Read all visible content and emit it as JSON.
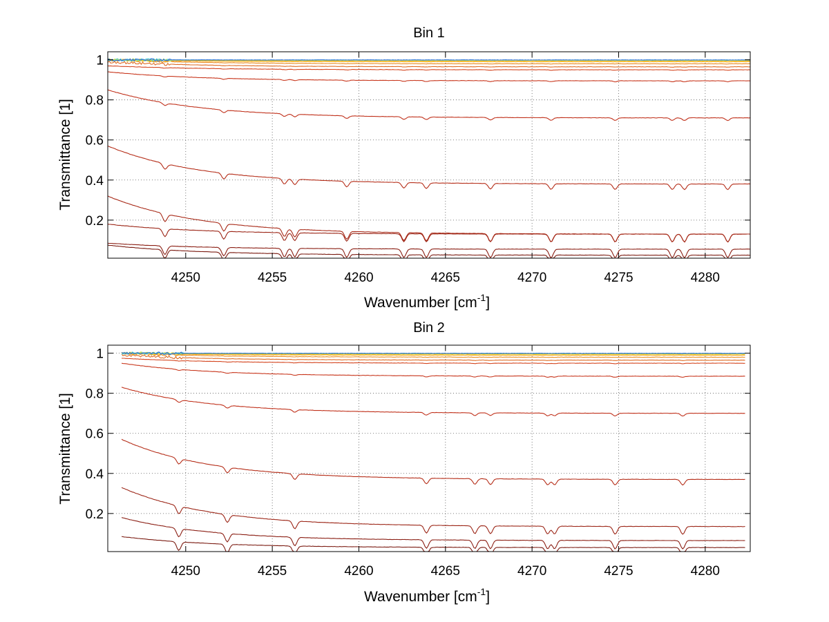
{
  "chart_data": [
    {
      "type": "line",
      "title": "Bin 1",
      "xlabel_main": "Wavenumber [cm",
      "xlabel_sup": "-1",
      "xlabel_end": "]",
      "ylabel": "Transmittance [1]",
      "xlim": [
        4245.5,
        4282.6
      ],
      "ylim": [
        0.01,
        1.04
      ],
      "grid": true,
      "x_ticks": [
        4250,
        4255,
        4260,
        4265,
        4270,
        4275,
        4280
      ],
      "y_ticks": [
        0.2,
        0.4,
        0.6,
        0.8,
        1
      ],
      "x_ticklabels": [
        "4250",
        "4255",
        "4260",
        "4265",
        "4270",
        "4275",
        "4280"
      ],
      "y_ticklabels": [
        "0.2",
        "0.4",
        "0.6",
        "0.8",
        "1"
      ],
      "x_start": 4245.5,
      "x_end": 4282.6,
      "absorption_lines": [
        4248.8,
        4252.2,
        4255.7,
        4256.3,
        4259.3,
        4262.6,
        4263.9,
        4267.6,
        4271.1,
        4274.8,
        4278.1,
        4278.8,
        4281.3
      ],
      "series": [
        {
          "color": "#7a1a10",
          "start": 0.075,
          "end": 0.025
        },
        {
          "color": "#8a1d12",
          "start": 0.085,
          "end": 0.055
        },
        {
          "color": "#9b2415",
          "start": 0.18,
          "end": 0.13
        },
        {
          "color": "#a82a18",
          "start": 0.32,
          "end": 0.13
        },
        {
          "color": "#b52d18",
          "start": 0.57,
          "end": 0.38
        },
        {
          "color": "#c0301a",
          "start": 0.85,
          "end": 0.71
        },
        {
          "color": "#c8361c",
          "start": 0.94,
          "end": 0.895
        },
        {
          "color": "#d4441e",
          "start": 0.97,
          "end": 0.95
        },
        {
          "color": "#de6a22",
          "start": 0.99,
          "end": 0.965
        },
        {
          "color": "#e98a20",
          "start": 1.0,
          "end": 0.98
        },
        {
          "color": "#f2a818",
          "start": 1.0,
          "end": 0.99
        },
        {
          "color": "#f7d418",
          "start": 1.0,
          "end": 0.995
        },
        {
          "color": "#b8e040",
          "start": 1.0,
          "end": 0.998
        },
        {
          "color": "#4fc8d8",
          "start": 1.0,
          "end": 0.999
        },
        {
          "color": "#2a6ad8",
          "start": 1.0,
          "end": 0.999
        }
      ]
    },
    {
      "type": "line",
      "title": "Bin 2",
      "xlabel_main": "Wavenumber [cm",
      "xlabel_sup": "-1",
      "xlabel_end": "]",
      "ylabel": "Transmittance [1]",
      "xlim": [
        4245.5,
        4282.6
      ],
      "ylim": [
        0.01,
        1.04
      ],
      "grid": true,
      "x_ticks": [
        4250,
        4255,
        4260,
        4265,
        4270,
        4275,
        4280
      ],
      "y_ticks": [
        0.2,
        0.4,
        0.6,
        0.8,
        1
      ],
      "x_ticklabels": [
        "4250",
        "4255",
        "4260",
        "4265",
        "4270",
        "4275",
        "4280"
      ],
      "y_ticklabels": [
        "0.2",
        "0.4",
        "0.6",
        "0.8",
        "1"
      ],
      "x_start": 4246.3,
      "x_end": 4282.3,
      "absorption_lines": [
        4249.6,
        4252.4,
        4256.3,
        4263.9,
        4266.7,
        4267.6,
        4270.9,
        4271.3,
        4274.8,
        4278.7
      ],
      "series": [
        {
          "color": "#7a1a10",
          "start": 0.085,
          "end": 0.03
        },
        {
          "color": "#8a1d12",
          "start": 0.18,
          "end": 0.065
        },
        {
          "color": "#9b2415",
          "start": 0.33,
          "end": 0.135
        },
        {
          "color": "#b52d18",
          "start": 0.57,
          "end": 0.37
        },
        {
          "color": "#c0301a",
          "start": 0.83,
          "end": 0.7
        },
        {
          "color": "#c8361c",
          "start": 0.95,
          "end": 0.885
        },
        {
          "color": "#d4441e",
          "start": 0.975,
          "end": 0.95
        },
        {
          "color": "#de6a22",
          "start": 0.99,
          "end": 0.965
        },
        {
          "color": "#e98a20",
          "start": 1.0,
          "end": 0.98
        },
        {
          "color": "#f2a818",
          "start": 1.0,
          "end": 0.99
        },
        {
          "color": "#f7d418",
          "start": 1.0,
          "end": 0.995
        },
        {
          "color": "#b8e040",
          "start": 1.0,
          "end": 0.998
        },
        {
          "color": "#4fc8d8",
          "start": 1.0,
          "end": 0.999
        },
        {
          "color": "#2a6ad8",
          "start": 1.0,
          "end": 0.999
        }
      ]
    }
  ]
}
